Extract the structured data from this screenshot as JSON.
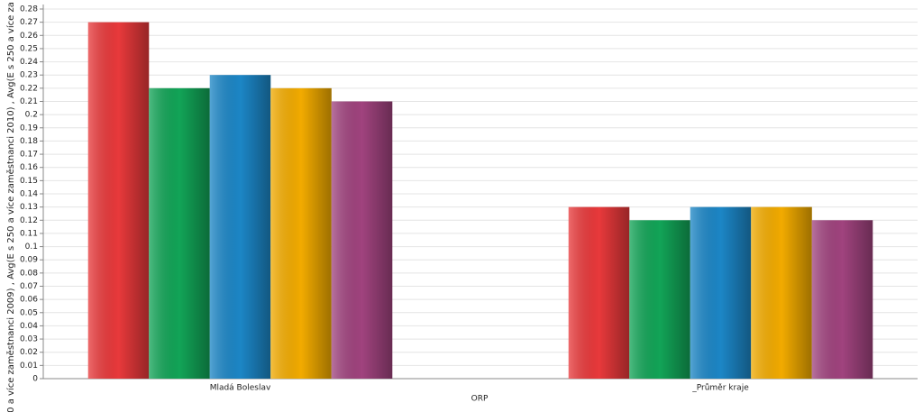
{
  "chart_data": {
    "type": "bar",
    "ylabel": "0 a více zaměstnanci 2009) , Avg(E s 250 a více zaměstnanci 2010) , Avg(E s 250 a více za",
    "xlabel": "ORP",
    "categories": [
      "Mladá Boleslav",
      "_Průměr kraje"
    ],
    "series": [
      {
        "color": "#e8393b",
        "values": [
          0.27,
          0.13
        ]
      },
      {
        "color": "#12a457",
        "values": [
          0.22,
          0.12
        ]
      },
      {
        "color": "#1c86c6",
        "values": [
          0.23,
          0.13
        ]
      },
      {
        "color": "#f2ab00",
        "values": [
          0.22,
          0.13
        ]
      },
      {
        "color": "#a0437e",
        "values": [
          0.21,
          0.12
        ]
      }
    ],
    "ylim": [
      0,
      0.28
    ],
    "yticks": [
      0,
      0.01,
      0.02,
      0.03,
      0.04,
      0.05,
      0.06,
      0.07,
      0.08,
      0.09,
      0.1,
      0.11,
      0.12,
      0.13,
      0.14,
      0.15,
      0.16,
      0.17,
      0.18,
      0.19,
      0.2,
      0.21,
      0.22,
      0.23,
      0.24,
      0.25,
      0.26,
      0.27,
      0.28
    ],
    "grid": true
  }
}
